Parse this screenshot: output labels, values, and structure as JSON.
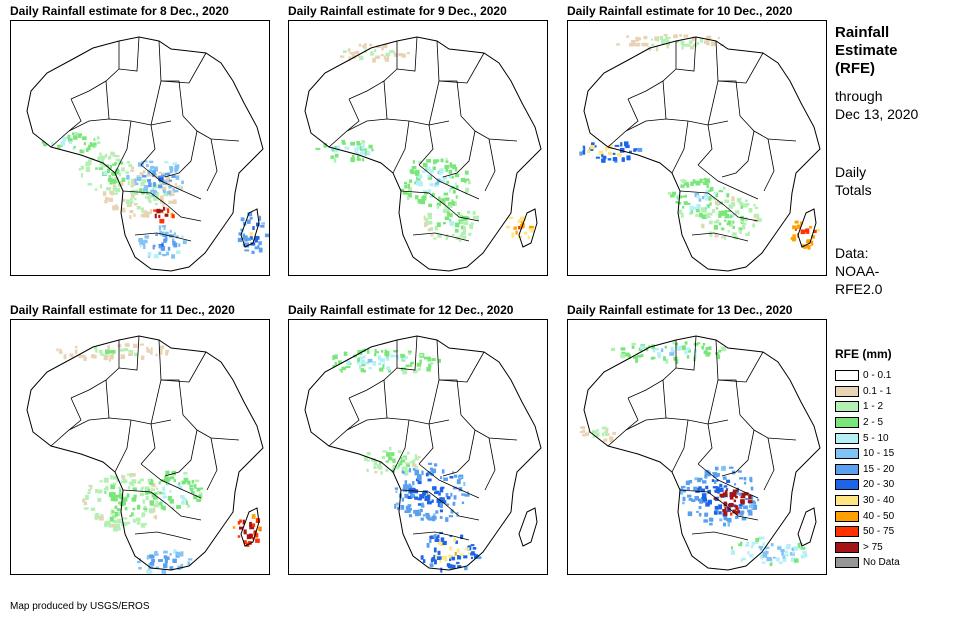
{
  "panels": [
    {
      "title": "Daily Rainfall estimate for 8 Dec., 2020",
      "day": 8
    },
    {
      "title": "Daily Rainfall estimate for 9 Dec., 2020",
      "day": 9
    },
    {
      "title": "Daily Rainfall estimate for 10 Dec., 2020",
      "day": 10
    },
    {
      "title": "Daily Rainfall estimate for 11 Dec., 2020",
      "day": 11
    },
    {
      "title": "Daily Rainfall estimate for 12 Dec., 2020",
      "day": 12
    },
    {
      "title": "Daily Rainfall estimate for 13 Dec., 2020",
      "day": 13
    }
  ],
  "sidebar": {
    "title_line1": "Rainfall",
    "title_line2": "Estimate",
    "title_line3": "(RFE)",
    "through_line1": "through",
    "through_line2": "Dec 13, 2020",
    "totals_line1": "Daily",
    "totals_line2": "Totals",
    "data_line1": "Data:",
    "data_line2": "NOAA-",
    "data_line3": "RFE2.0"
  },
  "legend": {
    "title": "RFE (mm)",
    "items": [
      {
        "label": "0 - 0.1",
        "color": "#ffffff"
      },
      {
        "label": "0.1 - 1",
        "color": "#e8d4b4"
      },
      {
        "label": "1 - 2",
        "color": "#b4f0b4"
      },
      {
        "label": "2 - 5",
        "color": "#78e678"
      },
      {
        "label": "5 - 10",
        "color": "#b4f0f5"
      },
      {
        "label": "10 - 15",
        "color": "#82c3f5"
      },
      {
        "label": "15 - 20",
        "color": "#5aa0ee"
      },
      {
        "label": "20 - 30",
        "color": "#1e64e6"
      },
      {
        "label": "30 - 40",
        "color": "#ffe682"
      },
      {
        "label": "40 - 50",
        "color": "#ffa000"
      },
      {
        "label": "50 - 75",
        "color": "#ff3200"
      },
      {
        "label": "> 75",
        "color": "#a51414"
      },
      {
        "label": "No Data",
        "color": "#969696"
      }
    ]
  },
  "credit": "Map produced by USGS/EROS"
}
